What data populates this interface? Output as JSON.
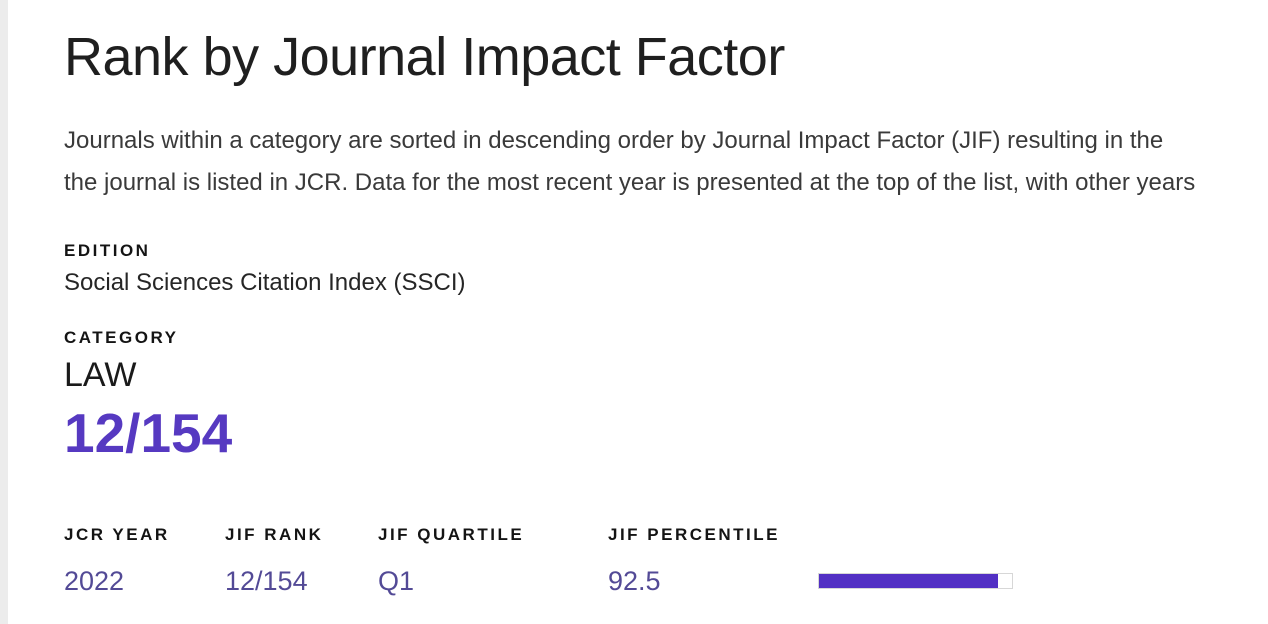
{
  "page": {
    "title": "Rank by Journal Impact Factor",
    "description_lines": [
      "Journals within a category are sorted in descending order by Journal Impact Factor (JIF) resulting in the",
      "the journal is listed in JCR. Data for the most recent year is presented at the top of the list, with other years"
    ]
  },
  "edition": {
    "label": "EDITION",
    "value": "Social Sciences Citation Index (SSCI)"
  },
  "category": {
    "label": "CATEGORY",
    "name": "LAW",
    "rank": "12/154"
  },
  "rank_table": {
    "headers": [
      "JCR YEAR",
      "JIF RANK",
      "JIF QUARTILE",
      "JIF PERCENTILE"
    ],
    "rows": [
      {
        "jcr_year": "2022",
        "jif_rank": "12/154",
        "jif_quartile": "Q1",
        "jif_percentile": "92.5"
      }
    ]
  },
  "colors": {
    "accent_purple": "#5639c1",
    "row_value_purple": "#534a96",
    "percentile_bar_fill": "#5230c4",
    "percentile_bar_border": "#d7d7d7"
  }
}
